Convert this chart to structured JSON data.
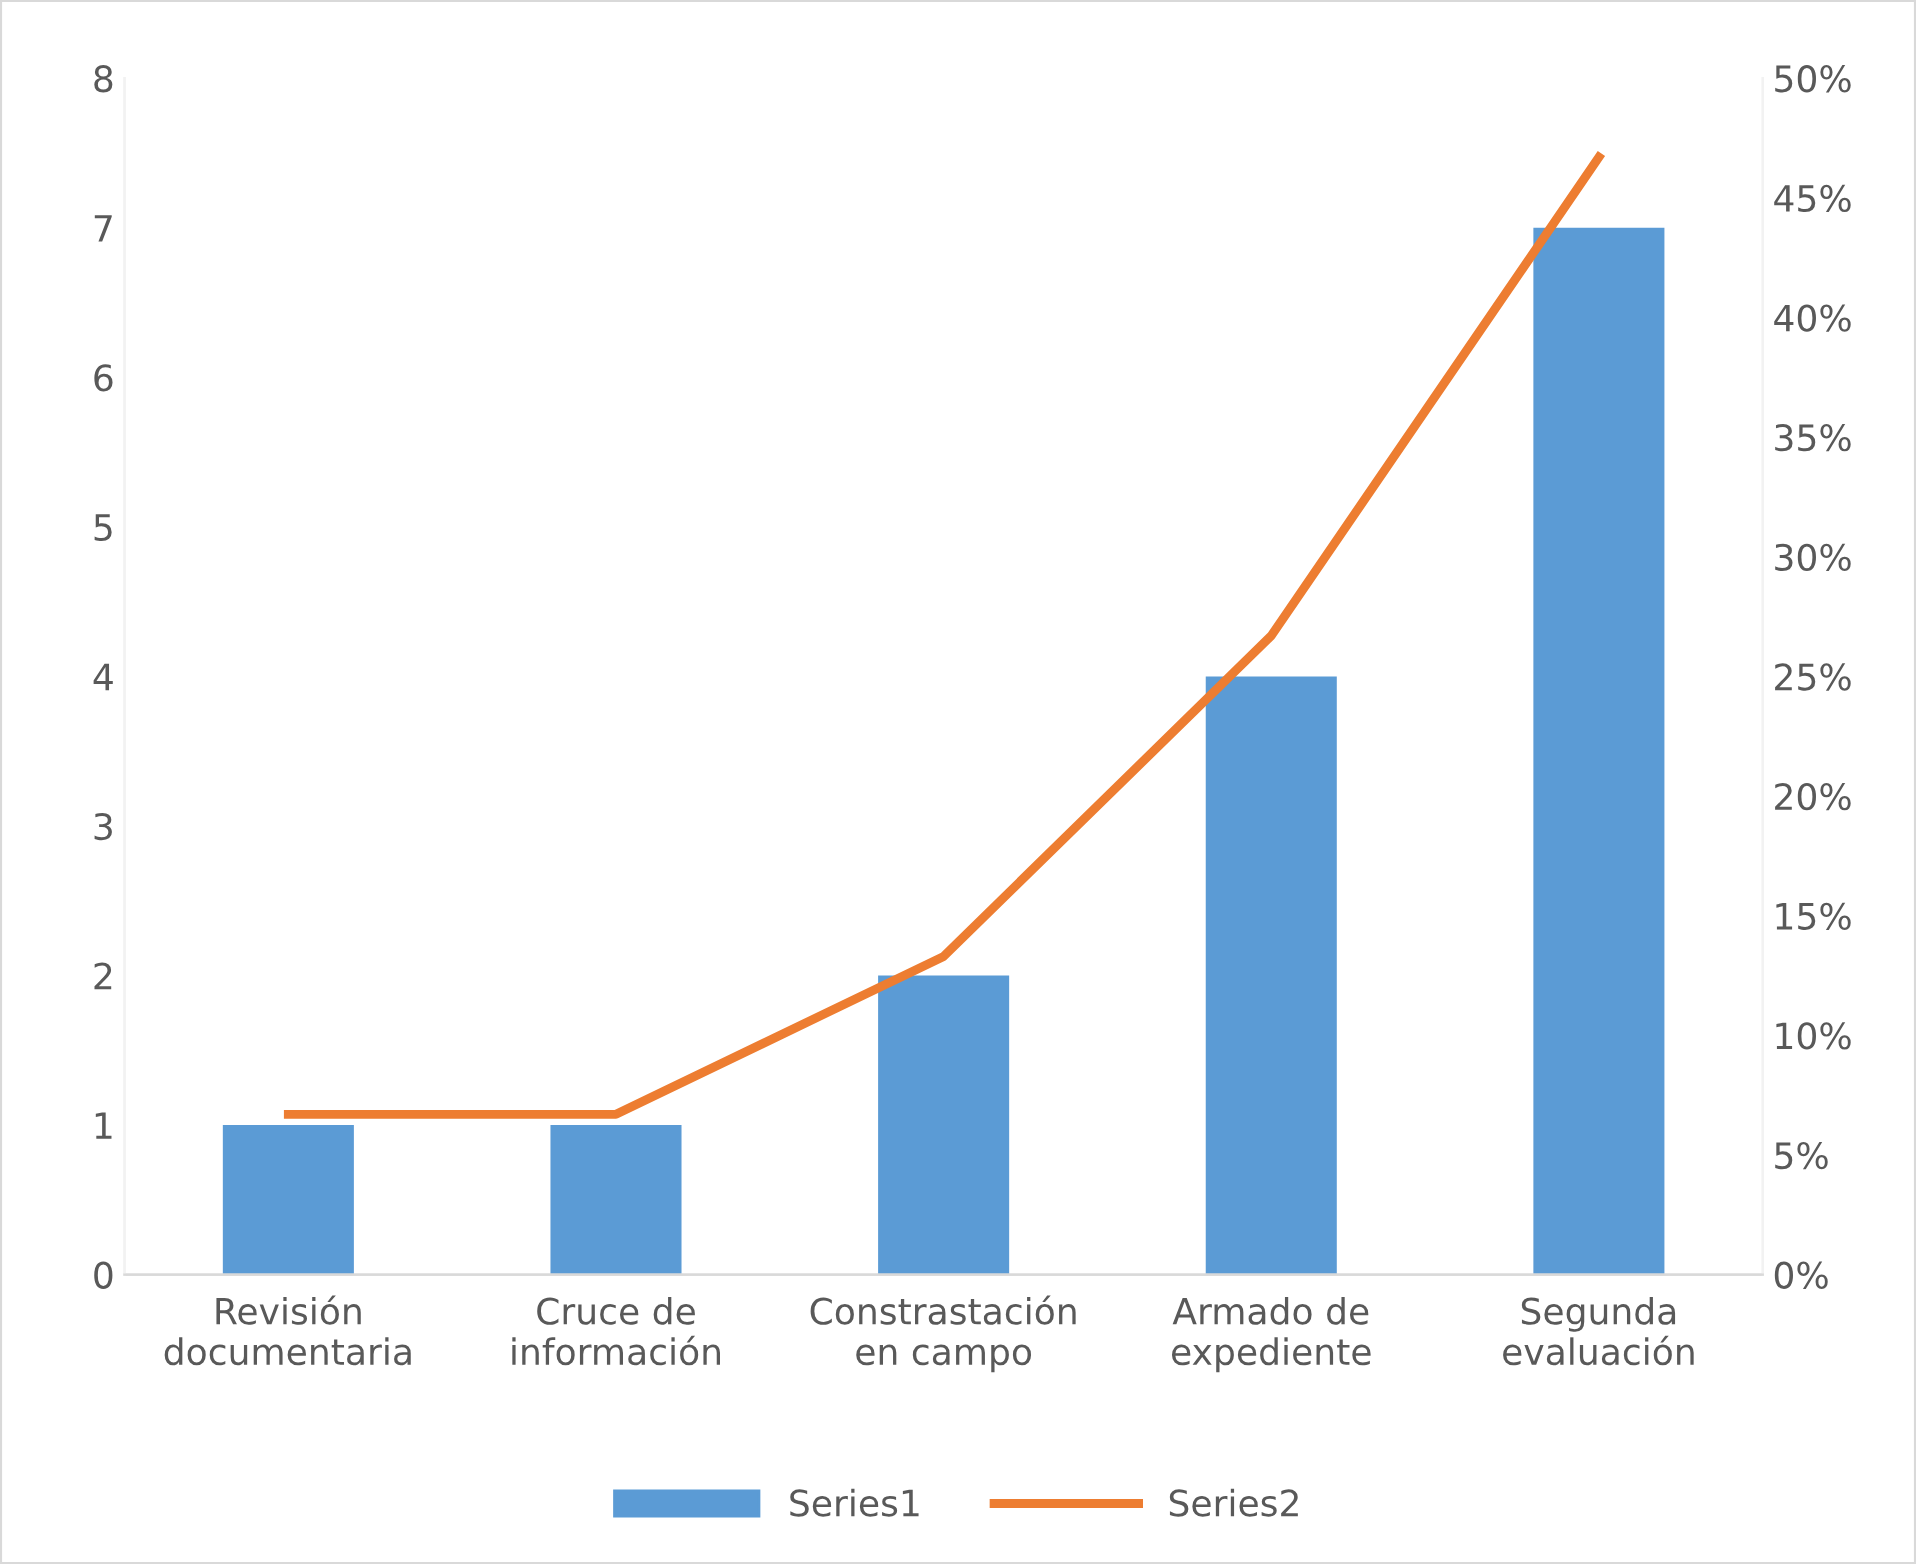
{
  "chart_data": {
    "type": "bar",
    "categories": [
      "Revisión\ndocumentaria",
      "Cruce de\ninformación",
      "Constrastación\nen campo",
      "Armado de\nexpediente",
      "Segunda\nevaluación"
    ],
    "series": [
      {
        "name": "Series1",
        "color": "#5b9bd5",
        "values": [
          1,
          1,
          2,
          4,
          7
        ]
      },
      {
        "name": "Series2",
        "type": "line",
        "axis": "y2",
        "color": "#ed7d31",
        "values": [
          6.7,
          6.7,
          13.3,
          26.7,
          46.7
        ]
      }
    ],
    "ylim": [
      0,
      8
    ],
    "yticks": [
      0,
      1,
      2,
      3,
      4,
      5,
      6,
      7,
      8
    ],
    "y2lim": [
      0,
      50
    ],
    "y2ticks": [
      {
        "value": 0,
        "label": "0%"
      },
      {
        "value": 5,
        "label": "5%"
      },
      {
        "value": 10,
        "label": "10%"
      },
      {
        "value": 15,
        "label": "15%"
      },
      {
        "value": 20,
        "label": "20%"
      },
      {
        "value": 25,
        "label": "25%"
      },
      {
        "value": 30,
        "label": "30%"
      },
      {
        "value": 35,
        "label": "35%"
      },
      {
        "value": 40,
        "label": "40%"
      },
      {
        "value": 45,
        "label": "45%"
      },
      {
        "value": 50,
        "label": "50%"
      }
    ],
    "grid": false,
    "legend": "bottom",
    "marker": "none",
    "line_style": "solid"
  }
}
